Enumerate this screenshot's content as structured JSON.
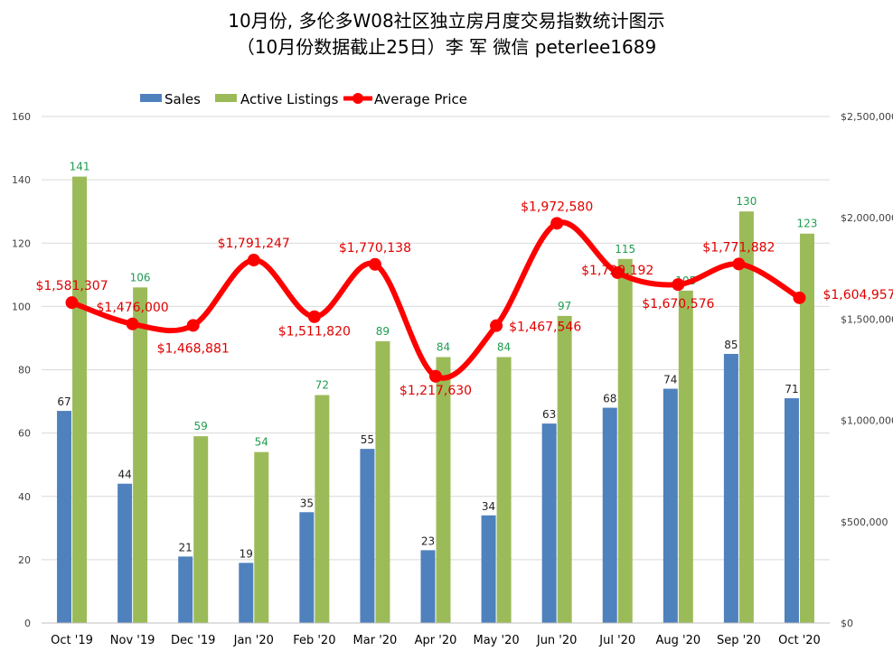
{
  "chart_data": {
    "type": "bar",
    "title": "10月份, 多伦多W08社区独立房月度交易指数统计图示",
    "subtitle": "（10月份数据截止25日）李 军 微信 peterlee1689",
    "categories": [
      "Oct '19",
      "Nov '19",
      "Dec '19",
      "Jan '20",
      "Feb '20",
      "Mar '20",
      "Apr '20",
      "May '20",
      "Jun '20",
      "Jul '20",
      "Aug '20",
      "Sep '20",
      "Oct '20"
    ],
    "series": [
      {
        "name": "Sales",
        "kind": "bar",
        "axis": "left",
        "color": "#4f81bd",
        "values": [
          67,
          44,
          21,
          19,
          35,
          55,
          23,
          34,
          63,
          68,
          74,
          85,
          71
        ]
      },
      {
        "name": "Active Listings",
        "kind": "bar",
        "axis": "left",
        "color": "#9bbb59",
        "values": [
          141,
          106,
          59,
          54,
          72,
          89,
          84,
          84,
          97,
          115,
          105,
          130,
          123
        ]
      },
      {
        "name": "Average Price",
        "kind": "line",
        "axis": "right",
        "color": "#ff0000",
        "values": [
          1581307,
          1476000,
          1468881,
          1791247,
          1511820,
          1770138,
          1217630,
          1467546,
          1972580,
          1729192,
          1670576,
          1771882,
          1604957
        ],
        "labels": [
          "$1,581,307",
          "$1,476,000",
          "$1,468,881",
          "$1,791,247",
          "$1,511,820",
          "$1,770,138",
          "$1,217,630",
          "$1,467,546",
          "$1,972,580",
          "$1,729,192",
          "$1,670,576",
          "$1,771,882",
          "$1,604,957"
        ]
      }
    ],
    "y_left": {
      "min": 0,
      "max": 160,
      "ticks": [
        "0",
        "20",
        "40",
        "60",
        "80",
        "100",
        "120",
        "140",
        "160"
      ]
    },
    "y_right": {
      "min": 0,
      "max": 2500000,
      "ticks": [
        "$0",
        "$500,000",
        "$1,000,000",
        "$1,500,000",
        "$2,000,000",
        "$2,500,000"
      ]
    },
    "legend_position": "top",
    "grid": true
  }
}
